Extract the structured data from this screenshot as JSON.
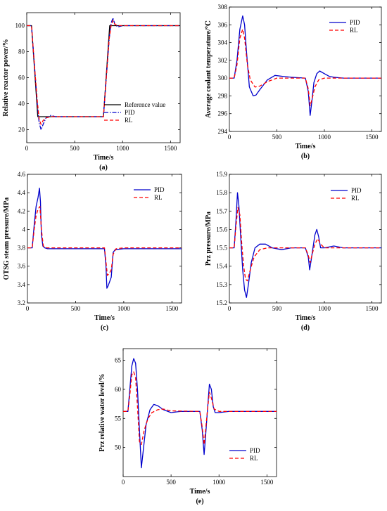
{
  "chart_data": [
    {
      "id": "a",
      "type": "line",
      "panel_label": "(a)",
      "xlabel": "Time/s",
      "ylabel": "Relative reactor power/%",
      "xlim": [
        0,
        1600
      ],
      "ylim": [
        10,
        110
      ],
      "xticks": [
        0,
        500,
        1000,
        1500
      ],
      "yticks": [
        20,
        40,
        60,
        80,
        100
      ],
      "legend_position": "bottom-right",
      "series": [
        {
          "name": "Reference value",
          "color": "#000000",
          "dash": "solid",
          "x": [
            0,
            50,
            115,
            800,
            865,
            1600
          ],
          "y": [
            100,
            100,
            30,
            30,
            100,
            100
          ]
        },
        {
          "name": "PID",
          "color": "#0000cc",
          "dash": "dashdot",
          "x": [
            0,
            50,
            80,
            110,
            130,
            150,
            170,
            200,
            250,
            300,
            400,
            800,
            830,
            860,
            880,
            900,
            920,
            950,
            1000,
            1600
          ],
          "y": [
            100,
            100,
            70,
            40,
            25,
            20,
            24,
            29,
            31,
            30,
            30,
            30,
            60,
            90,
            102,
            106,
            101,
            99,
            100,
            100
          ]
        },
        {
          "name": "RL",
          "color": "#ff0000",
          "dash": "dash",
          "x": [
            0,
            50,
            80,
            110,
            130,
            150,
            170,
            200,
            250,
            300,
            800,
            830,
            860,
            880,
            900,
            920,
            950,
            1000,
            1600
          ],
          "y": [
            100,
            100,
            70,
            42,
            28,
            24,
            27,
            29,
            30,
            30,
            30,
            60,
            90,
            100,
            104,
            101,
            100,
            100,
            100
          ]
        }
      ]
    },
    {
      "id": "b",
      "type": "line",
      "panel_label": "(b)",
      "xlabel": "Time/s",
      "ylabel": "Average coolant temperature/℃",
      "xlim": [
        0,
        1600
      ],
      "ylim": [
        294,
        308
      ],
      "xticks": [
        0,
        500,
        1000,
        1500
      ],
      "yticks": [
        294,
        296,
        298,
        300,
        302,
        304,
        306,
        308
      ],
      "legend_position": "top-right",
      "series": [
        {
          "name": "PID",
          "color": "#0000cc",
          "dash": "solid",
          "x": [
            0,
            50,
            80,
            110,
            140,
            160,
            180,
            210,
            250,
            280,
            320,
            400,
            480,
            560,
            650,
            800,
            830,
            850,
            870,
            890,
            920,
            950,
            1000,
            1050,
            1100,
            1200,
            1600
          ],
          "y": [
            300,
            300,
            302,
            305.5,
            307,
            306,
            303,
            299,
            298,
            298.1,
            298.7,
            299.8,
            300.3,
            300.2,
            300.1,
            300,
            298.5,
            295.8,
            297.5,
            299.5,
            300.5,
            300.8,
            300.5,
            300.2,
            300.1,
            300,
            300
          ]
        },
        {
          "name": "RL",
          "color": "#ff0000",
          "dash": "dash",
          "x": [
            0,
            50,
            80,
            110,
            140,
            160,
            190,
            220,
            270,
            320,
            400,
            500,
            600,
            800,
            830,
            850,
            870,
            900,
            940,
            1000,
            1100,
            1600
          ],
          "y": [
            300,
            300,
            301.5,
            304.5,
            305.5,
            304.5,
            301.5,
            299.8,
            299,
            299.1,
            299.6,
            300,
            300,
            300,
            298.8,
            296.9,
            297.6,
            299,
            299.8,
            300,
            300,
            300
          ]
        }
      ]
    },
    {
      "id": "c",
      "type": "line",
      "panel_label": "(c)",
      "xlabel": "Time/s",
      "ylabel": "OTSG steam pressure/MPa",
      "xlim": [
        0,
        1600
      ],
      "ylim": [
        3.2,
        4.6
      ],
      "xticks": [
        0,
        500,
        1000,
        1500
      ],
      "yticks": [
        3.2,
        3.4,
        3.6,
        3.8,
        4,
        4.2,
        4.4,
        4.6
      ],
      "legend_position": "top-right",
      "series": [
        {
          "name": "PID",
          "color": "#0000cc",
          "dash": "solid",
          "x": [
            0,
            50,
            70,
            90,
            110,
            125,
            135,
            145,
            160,
            180,
            210,
            800,
            815,
            825,
            835,
            850,
            870,
            890,
            910,
            1000,
            1600
          ],
          "y": [
            3.8,
            3.8,
            4.05,
            4.25,
            4.35,
            4.45,
            4.3,
            3.95,
            3.82,
            3.8,
            3.79,
            3.79,
            3.6,
            3.36,
            3.38,
            3.42,
            3.48,
            3.75,
            3.78,
            3.79,
            3.79
          ]
        },
        {
          "name": "RL",
          "color": "#ff0000",
          "dash": "dash",
          "x": [
            0,
            50,
            70,
            90,
            110,
            130,
            145,
            165,
            200,
            800,
            815,
            830,
            850,
            870,
            890,
            920,
            1000,
            1600
          ],
          "y": [
            3.8,
            3.8,
            4.0,
            4.15,
            4.22,
            4.25,
            4.0,
            3.82,
            3.8,
            3.8,
            3.65,
            3.5,
            3.52,
            3.56,
            3.73,
            3.79,
            3.8,
            3.8
          ]
        }
      ]
    },
    {
      "id": "d",
      "type": "line",
      "panel_label": "(d)",
      "xlabel": "Time/s",
      "ylabel": "Prz pressure/MPa",
      "xlim": [
        0,
        1600
      ],
      "ylim": [
        15.2,
        15.9
      ],
      "xticks": [
        0,
        500,
        1000,
        1500
      ],
      "yticks": [
        15.2,
        15.3,
        15.4,
        15.5,
        15.6,
        15.7,
        15.8,
        15.9
      ],
      "legend_position": "top-right",
      "series": [
        {
          "name": "PID",
          "color": "#0000cc",
          "dash": "solid",
          "x": [
            0,
            50,
            70,
            85,
            100,
            120,
            140,
            160,
            180,
            200,
            230,
            270,
            320,
            380,
            450,
            550,
            650,
            800,
            830,
            845,
            860,
            880,
            900,
            920,
            940,
            960,
            1000,
            1100,
            1200,
            1600
          ],
          "y": [
            15.5,
            15.5,
            15.65,
            15.8,
            15.73,
            15.55,
            15.38,
            15.27,
            15.23,
            15.3,
            15.42,
            15.5,
            15.52,
            15.52,
            15.5,
            15.49,
            15.5,
            15.5,
            15.45,
            15.38,
            15.43,
            15.5,
            15.57,
            15.6,
            15.56,
            15.5,
            15.5,
            15.51,
            15.5,
            15.5
          ]
        },
        {
          "name": "RL",
          "color": "#ff0000",
          "dash": "dash",
          "x": [
            0,
            50,
            70,
            90,
            110,
            130,
            150,
            170,
            190,
            220,
            260,
            320,
            400,
            500,
            800,
            830,
            850,
            870,
            900,
            930,
            960,
            1000,
            1600
          ],
          "y": [
            15.5,
            15.5,
            15.62,
            15.72,
            15.68,
            15.52,
            15.4,
            15.33,
            15.32,
            15.38,
            15.45,
            15.49,
            15.5,
            15.5,
            15.5,
            15.46,
            15.42,
            15.46,
            15.52,
            15.55,
            15.52,
            15.5,
            15.5
          ]
        }
      ]
    },
    {
      "id": "e",
      "type": "line",
      "panel_label": "(e)",
      "xlabel": "Time/s",
      "ylabel": "Prz relative water level/%",
      "xlim": [
        0,
        1600
      ],
      "ylim": [
        45,
        67
      ],
      "xticks": [
        0,
        500,
        1000,
        1500
      ],
      "yticks": [
        50,
        55,
        60,
        65
      ],
      "legend_position": "bottom-right",
      "series": [
        {
          "name": "PID",
          "color": "#0000cc",
          "dash": "solid",
          "x": [
            0,
            50,
            70,
            90,
            110,
            130,
            150,
            170,
            190,
            210,
            240,
            280,
            320,
            360,
            420,
            500,
            600,
            800,
            825,
            845,
            860,
            880,
            900,
            920,
            940,
            960,
            1000,
            1100,
            1600
          ],
          "y": [
            56.2,
            56.2,
            60,
            64,
            65.3,
            64.5,
            60,
            53,
            46.5,
            49.5,
            54,
            56.5,
            57.4,
            57.2,
            56.5,
            56,
            56.2,
            56.2,
            53,
            48.8,
            52,
            56.5,
            60.9,
            60,
            57,
            56,
            56,
            56.2,
            56.2
          ]
        },
        {
          "name": "RL",
          "color": "#ff0000",
          "dash": "dash",
          "x": [
            0,
            50,
            70,
            90,
            110,
            130,
            150,
            170,
            190,
            220,
            260,
            300,
            360,
            420,
            500,
            800,
            825,
            845,
            860,
            880,
            900,
            920,
            950,
            1000,
            1600
          ],
          "y": [
            56.2,
            56.2,
            59,
            62.5,
            63,
            62,
            57,
            51,
            50.5,
            53,
            55,
            56,
            56.5,
            56.6,
            56.3,
            56.2,
            53.5,
            50.5,
            53,
            56.5,
            59.5,
            58.5,
            56.6,
            56.2,
            56.2
          ]
        }
      ]
    }
  ]
}
